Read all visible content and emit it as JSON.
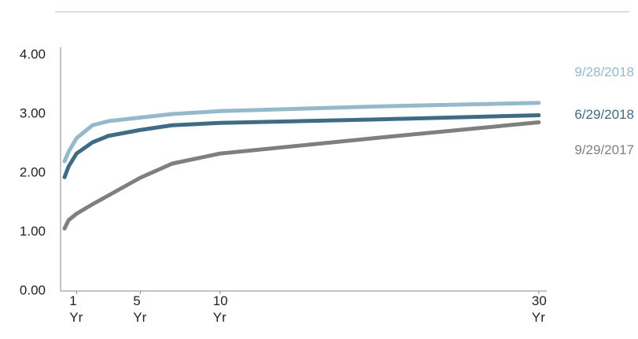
{
  "chart_data": {
    "type": "line",
    "x": [
      0.25,
      0.5,
      1,
      2,
      3,
      5,
      7,
      10,
      20,
      30
    ],
    "series": [
      {
        "name": "9/28/2018",
        "color": "#93b9ca",
        "values": [
          2.2,
          2.36,
          2.59,
          2.81,
          2.88,
          2.94,
          3.0,
          3.05,
          3.13,
          3.19
        ]
      },
      {
        "name": "6/29/2018",
        "color": "#3f6b85",
        "values": [
          1.93,
          2.11,
          2.33,
          2.52,
          2.63,
          2.73,
          2.81,
          2.85,
          2.91,
          2.98
        ]
      },
      {
        "name": "9/29/2017",
        "color": "#7f7f7f",
        "values": [
          1.06,
          1.2,
          1.31,
          1.47,
          1.62,
          1.92,
          2.16,
          2.33,
          2.6,
          2.86
        ]
      }
    ],
    "xlim": [
      0,
      30.5
    ],
    "xticks": [
      {
        "value": 1,
        "label": "1 Yr"
      },
      {
        "value": 5,
        "label": "5 Yr"
      },
      {
        "value": 10,
        "label": "10 Yr"
      },
      {
        "value": 30,
        "label": "30 Yr"
      }
    ],
    "ylim": [
      0,
      4
    ],
    "yticks": [
      {
        "value": 0,
        "label": "0.00"
      },
      {
        "value": 1,
        "label": "1.00"
      },
      {
        "value": 2,
        "label": "2.00"
      },
      {
        "value": 3,
        "label": "3.00"
      },
      {
        "value": 4,
        "label": "4.00"
      }
    ],
    "grid": false
  }
}
